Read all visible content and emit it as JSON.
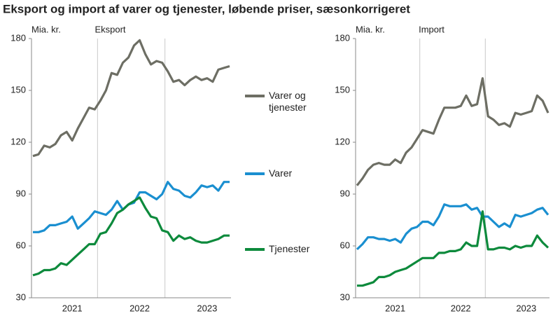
{
  "title": "Eksport og import af varer og tjenester, løbende priser, sæsonkorrigeret",
  "chart_data": [
    {
      "type": "line",
      "unit_label": "Mia. kr.",
      "subtitle": "Eksport",
      "categories": [
        null,
        null,
        null,
        null,
        null,
        null,
        null,
        "2021",
        null,
        null,
        null,
        null,
        null,
        null,
        null,
        null,
        null,
        null,
        null,
        "2022",
        null,
        null,
        null,
        null,
        null,
        null,
        null,
        null,
        null,
        null,
        null,
        "2023",
        null,
        null,
        null,
        null
      ],
      "ylim": [
        30,
        180
      ],
      "yticks": [
        30,
        60,
        90,
        120,
        150,
        180
      ],
      "grid": false,
      "series": [
        {
          "name": "Varer og tjenester",
          "color": "#6d6e64",
          "values": [
            112,
            113,
            118,
            117,
            119,
            124,
            126,
            121,
            128,
            134,
            140,
            139,
            144,
            150,
            160,
            159,
            166,
            169,
            176,
            179,
            171,
            165,
            167,
            166,
            161,
            155,
            156,
            153,
            156,
            158,
            156,
            157,
            155,
            162,
            163,
            164
          ]
        },
        {
          "name": "Varer",
          "color": "#1a8fd0",
          "values": [
            68,
            68,
            69,
            72,
            72,
            73,
            74,
            77,
            70,
            73,
            76,
            80,
            79,
            78,
            81,
            86,
            81,
            84,
            85,
            91,
            91,
            89,
            87,
            90,
            97,
            93,
            92,
            89,
            88,
            91,
            95,
            94,
            95,
            92,
            97,
            97
          ]
        },
        {
          "name": "Tjenester",
          "color": "#0d8a3c",
          "values": [
            43,
            44,
            46,
            46,
            47,
            50,
            49,
            52,
            55,
            58,
            61,
            61,
            67,
            68,
            73,
            79,
            81,
            84,
            86,
            88,
            82,
            77,
            76,
            69,
            68,
            63,
            66,
            64,
            65,
            63,
            62,
            62,
            63,
            64,
            66,
            66
          ]
        }
      ]
    },
    {
      "type": "line",
      "unit_label": "Mia. kr.",
      "subtitle": "Import",
      "categories": [
        null,
        null,
        null,
        null,
        null,
        null,
        null,
        "2021",
        null,
        null,
        null,
        null,
        null,
        null,
        null,
        null,
        null,
        null,
        null,
        "2022",
        null,
        null,
        null,
        null,
        null,
        null,
        null,
        null,
        null,
        null,
        null,
        "2023",
        null,
        null,
        null,
        null
      ],
      "ylim": [
        30,
        180
      ],
      "yticks": [
        30,
        60,
        90,
        120,
        150,
        180
      ],
      "grid": false,
      "series": [
        {
          "color": "#6d6e64",
          "values": [
            95,
            99,
            104,
            107,
            108,
            107,
            107,
            110,
            108,
            114,
            117,
            122,
            127,
            126,
            125,
            133,
            140,
            140,
            140,
            141,
            147,
            141,
            142,
            157,
            135,
            133,
            130,
            131,
            129,
            137,
            136,
            137,
            138,
            147,
            144,
            137
          ]
        },
        {
          "color": "#1a8fd0",
          "values": [
            58,
            61,
            65,
            65,
            64,
            64,
            63,
            64,
            62,
            67,
            70,
            71,
            74,
            74,
            72,
            77,
            84,
            83,
            83,
            83,
            84,
            81,
            82,
            77,
            77,
            74,
            71,
            73,
            71,
            78,
            77,
            78,
            79,
            81,
            82,
            78
          ]
        },
        {
          "color": "#0d8a3c",
          "values": [
            37,
            37,
            38,
            39,
            42,
            42,
            43,
            45,
            46,
            47,
            49,
            51,
            53,
            53,
            53,
            56,
            56,
            57,
            57,
            58,
            62,
            60,
            60,
            80,
            58,
            58,
            59,
            59,
            58,
            60,
            59,
            60,
            60,
            66,
            62,
            59
          ]
        }
      ]
    }
  ]
}
